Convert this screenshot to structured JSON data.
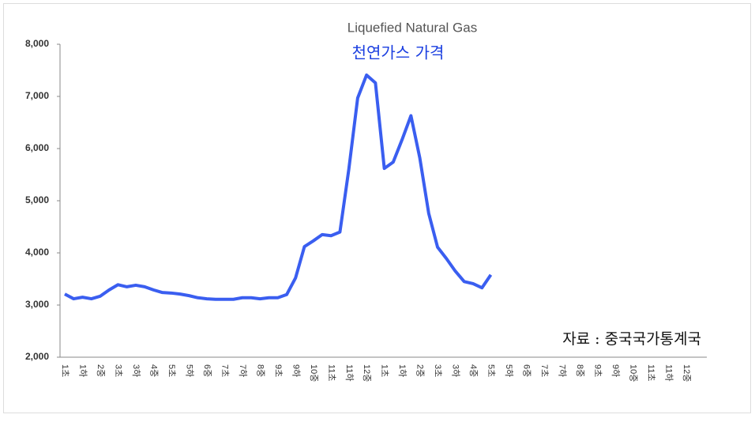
{
  "chart_data": {
    "type": "line",
    "title": "Liquefied Natural Gas",
    "subtitle": "천연가스 가격",
    "annotation": "자료 : 중국국가통계국",
    "categories": [
      "1초",
      null,
      "1하",
      null,
      "2중",
      null,
      "3초",
      null,
      "3하",
      null,
      "4중",
      null,
      "5초",
      null,
      "5하",
      null,
      "6중",
      null,
      "7초",
      null,
      "7하",
      null,
      "8중",
      null,
      "9초",
      null,
      "9하",
      null,
      "10중",
      null,
      "11초",
      null,
      "11하",
      null,
      "12중",
      null,
      "1초",
      null,
      "1하",
      null,
      "2중",
      null,
      "3초",
      null,
      "3하",
      null,
      "4중",
      null,
      "5초",
      null,
      "5하",
      null,
      "6중",
      null,
      "7초",
      null,
      "7하",
      null,
      "8중",
      null,
      "9초",
      null,
      "9하",
      null,
      "10중",
      null,
      "11초",
      null,
      "11하",
      null,
      "12중",
      null
    ],
    "series": [
      {
        "name": "천연가스 가격",
        "color": "#3a5ef0",
        "values": [
          3210,
          3120,
          3150,
          3120,
          3170,
          3290,
          3390,
          3350,
          3380,
          3350,
          3290,
          3240,
          3230,
          3210,
          3180,
          3140,
          3120,
          3110,
          3110,
          3110,
          3140,
          3140,
          3120,
          3140,
          3140,
          3200,
          3520,
          4120,
          4230,
          4350,
          4330,
          4400,
          5600,
          6970,
          7410,
          7260,
          5620,
          5740,
          6170,
          6630,
          5820,
          4760,
          4110,
          3890,
          3650,
          3450,
          3410,
          3330,
          3580,
          null,
          null,
          null,
          null,
          null,
          null,
          null,
          null,
          null,
          null,
          null,
          null,
          null,
          null,
          null,
          null,
          null,
          null,
          null,
          null,
          null,
          null,
          null
        ]
      }
    ],
    "ylim": [
      2000,
      8000
    ],
    "yticks": [
      {
        "value": 2000,
        "label": "2,000"
      },
      {
        "value": 3000,
        "label": "3,000"
      },
      {
        "value": 4000,
        "label": "4,000"
      },
      {
        "value": 5000,
        "label": "5,000"
      },
      {
        "value": 6000,
        "label": "6,000"
      },
      {
        "value": 7000,
        "label": "7,000"
      },
      {
        "value": 8000,
        "label": "8,000"
      }
    ],
    "grid": false
  }
}
